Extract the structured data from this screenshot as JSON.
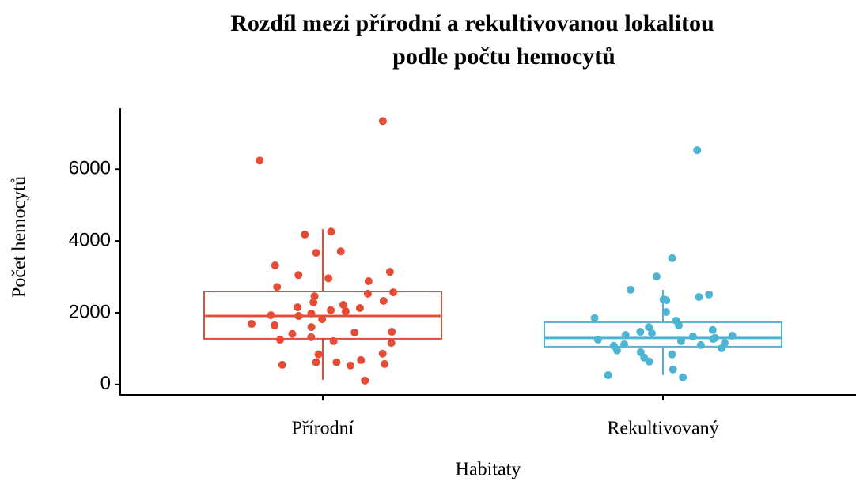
{
  "chart_data": {
    "type": "box",
    "title": [
      "Rozdíl mezi přírodní a rekultivovanou lokalitou",
      "podle počtu hemocytů"
    ],
    "x_label": "Habitaty",
    "y_label": "Počet hemocytů",
    "categories": [
      "Přírodní",
      "Rekultivovaný"
    ],
    "colors": [
      "#e64b35",
      "#4db4d4"
    ],
    "boxes": [
      {
        "whislo": 130,
        "q1": 1275,
        "med": 1912,
        "q3": 2593,
        "whishi": 4330
      },
      {
        "whislo": 264,
        "q1": 1055,
        "med": 1297,
        "q3": 1736,
        "whishi": 2637
      }
    ],
    "points": [
      [
        7340,
        6240,
        4260,
        4180,
        3670,
        3710,
        3320,
        3050,
        2960,
        3140,
        2880,
        2720,
        2570,
        2530,
        2460,
        2330,
        2290,
        2220,
        2150,
        2130,
        2070,
        2040,
        1980,
        1930,
        1910,
        1820,
        1690,
        1650,
        1600,
        1470,
        1450,
        1410,
        1320,
        1250,
        1210,
        1160,
        860,
        840,
        680,
        620,
        570,
        620,
        550,
        530,
        110
      ],
      [
        6530,
        3520,
        3010,
        2640,
        2510,
        2440,
        2370,
        2350,
        2020,
        1850,
        1780,
        1650,
        1600,
        1520,
        1470,
        1430,
        1380,
        1360,
        1340,
        1300,
        1270,
        1250,
        1210,
        1160,
        1120,
        1100,
        1080,
        1010,
        950,
        900,
        840,
        750,
        640,
        420,
        260,
        200
      ]
    ],
    "ylim": [
      -290,
      7700
    ],
    "yticks": [
      0,
      2000,
      4000,
      6000
    ]
  }
}
